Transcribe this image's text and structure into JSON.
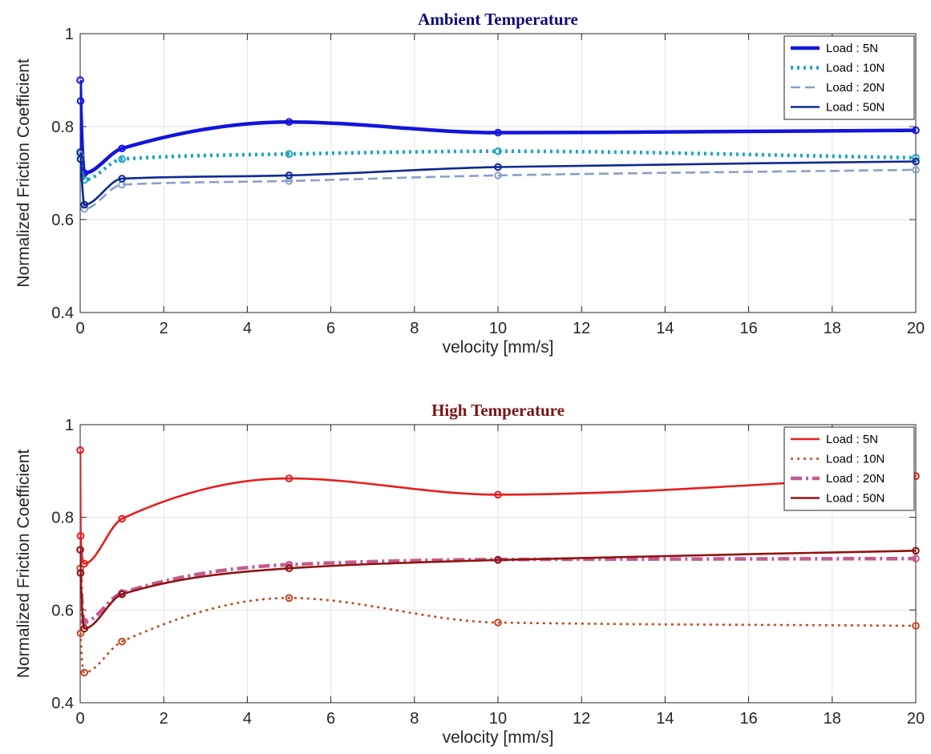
{
  "chart_data": [
    {
      "type": "line",
      "title": "Ambient Temperature",
      "title_color": "#0d0d7a",
      "xlabel": "velocity [mm/s]",
      "ylabel": "Normalized Friction Coefficient",
      "xlim": [
        0,
        20
      ],
      "ylim": [
        0.4,
        1.0
      ],
      "xticks": [
        "0",
        "2",
        "4",
        "6",
        "8",
        "10",
        "12",
        "14",
        "16",
        "18",
        "20"
      ],
      "yticks": [
        "0.4",
        "0.6",
        "0.8",
        "1"
      ],
      "grid": true,
      "legend_position": "top-right",
      "x": [
        0.001,
        0.01,
        0.1,
        1,
        5,
        10,
        20
      ],
      "series": [
        {
          "name": "Load : 5N",
          "color": "#1414dc",
          "dash": "solid",
          "width": "thick",
          "values": [
            0.9,
            0.855,
            0.7,
            0.753,
            0.81,
            0.787,
            0.792
          ]
        },
        {
          "name": "Load : 10N",
          "color": "#17a4c3",
          "dash": "dotted",
          "width": "thick",
          "values": [
            0.745,
            0.73,
            0.685,
            0.73,
            0.741,
            0.747,
            0.733
          ]
        },
        {
          "name": "Load : 20N",
          "color": "#8a9fc8",
          "dash": "dashed",
          "width": "medium",
          "values": [
            0.74,
            0.73,
            0.623,
            0.675,
            0.683,
            0.695,
            0.707
          ]
        },
        {
          "name": "Load : 50N",
          "color": "#0d2a92",
          "dash": "solid",
          "width": "medium",
          "values": [
            0.745,
            0.73,
            0.632,
            0.688,
            0.695,
            0.713,
            0.725
          ]
        }
      ]
    },
    {
      "type": "line",
      "title": "High Temperature",
      "title_color": "#7a1414",
      "xlabel": "velocity [mm/s]",
      "ylabel": "Normalized Friction Coefficient",
      "xlim": [
        0,
        20
      ],
      "ylim": [
        0.4,
        1.0
      ],
      "xticks": [
        "0",
        "2",
        "4",
        "6",
        "8",
        "10",
        "12",
        "14",
        "16",
        "18",
        "20"
      ],
      "yticks": [
        "0.4",
        "0.6",
        "0.8",
        "1"
      ],
      "grid": true,
      "legend_position": "top-right",
      "x": [
        0.001,
        0.01,
        0.1,
        1,
        5,
        10,
        20
      ],
      "series": [
        {
          "name": "Load : 5N",
          "color": "#e81c1c",
          "dash": "solid",
          "width": "medium",
          "values": [
            0.945,
            0.76,
            0.7,
            0.797,
            0.884,
            0.849,
            0.889
          ]
        },
        {
          "name": "Load : 10N",
          "color": "#c2471f",
          "dash": "dotted",
          "width": "medium",
          "values": [
            0.69,
            0.55,
            0.465,
            0.532,
            0.626,
            0.573,
            0.566
          ]
        },
        {
          "name": "Load : 20N",
          "color": "#c45b8f",
          "dash": "dashdot",
          "width": "thick",
          "values": [
            0.73,
            0.68,
            0.575,
            0.637,
            0.698,
            0.709,
            0.711
          ]
        },
        {
          "name": "Load : 50N",
          "color": "#8f1414",
          "dash": "solid",
          "width": "medium",
          "values": [
            0.73,
            0.68,
            0.56,
            0.634,
            0.69,
            0.708,
            0.728
          ]
        }
      ]
    }
  ]
}
